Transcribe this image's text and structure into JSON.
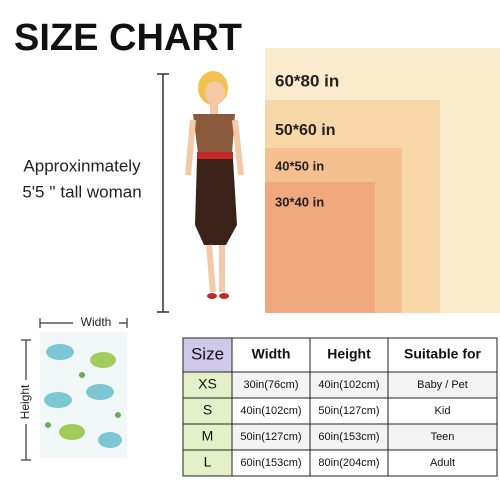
{
  "header": {
    "title": "SIZE CHART"
  },
  "figure": {
    "note_line1": "Approxinmately",
    "note_line2": "5'5 '' tall woman"
  },
  "blankets": [
    "60*80 in",
    "50*60 in",
    "40*50 in",
    "30*40 in"
  ],
  "sample": {
    "width_label": "Width",
    "height_label": "Height"
  },
  "table": {
    "header": [
      "Size",
      "Width",
      "Height",
      "Suitable for"
    ],
    "rows": [
      [
        "XS",
        "30in(76cm)",
        "40in(102cm)",
        "Baby / Pet"
      ],
      [
        "S",
        "40in(102cm)",
        "50in(127cm)",
        "Kid"
      ],
      [
        "M",
        "50in(127cm)",
        "60in(153cm)",
        "Teen"
      ],
      [
        "L",
        "60in(153cm)",
        "80in(204cm)",
        "Adult"
      ]
    ]
  }
}
